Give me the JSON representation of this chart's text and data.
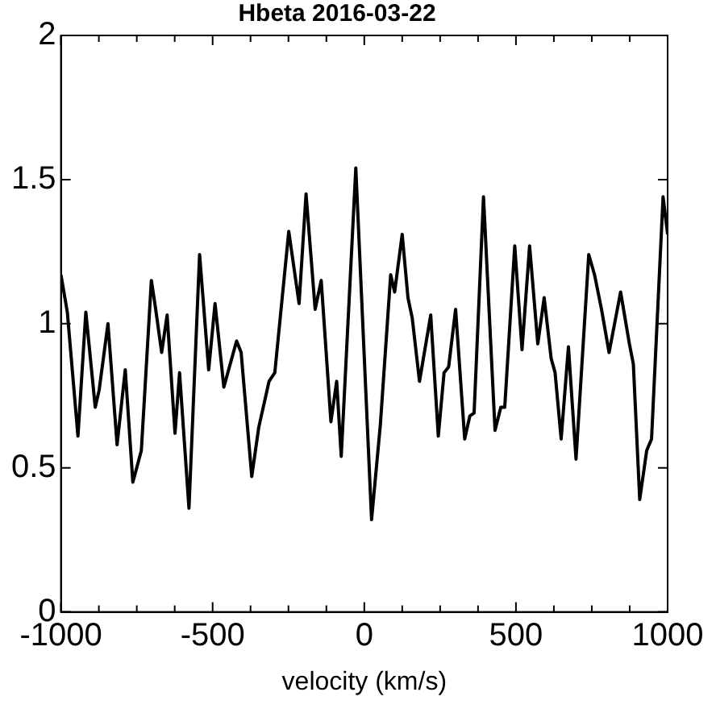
{
  "chart_data": {
    "type": "line",
    "title": "Hbeta 2016-03-22",
    "xlabel": "velocity (km/s)",
    "x": [
      -1000,
      -979,
      -944,
      -918,
      -887,
      -874,
      -845,
      -815,
      -788,
      -763,
      -735,
      -702,
      -689,
      -668,
      -650,
      -624,
      -609,
      -578,
      -543,
      -513,
      -492,
      -463,
      -421,
      -406,
      -371,
      -348,
      -314,
      -295,
      -249,
      -215,
      -192,
      -162,
      -142,
      -110,
      -91,
      -76,
      -28,
      24,
      53,
      87,
      100,
      125,
      144,
      158,
      182,
      219,
      244,
      263,
      278,
      301,
      331,
      348,
      362,
      393,
      431,
      450,
      463,
      496,
      520,
      545,
      572,
      593,
      616,
      629,
      649,
      673,
      698,
      740,
      759,
      782,
      807,
      845,
      874,
      887,
      908,
      931,
      947,
      985,
      1000
    ],
    "series": [
      {
        "color": "#000000",
        "values": [
          1.17,
          1.04,
          0.61,
          1.04,
          0.71,
          0.77,
          1.0,
          0.58,
          0.84,
          0.45,
          0.56,
          1.15,
          1.06,
          0.9,
          1.03,
          0.62,
          0.83,
          0.36,
          1.24,
          0.84,
          1.07,
          0.78,
          0.94,
          0.9,
          0.47,
          0.64,
          0.8,
          0.83,
          1.32,
          1.07,
          1.45,
          1.05,
          1.15,
          0.66,
          0.8,
          0.54,
          1.54,
          0.32,
          0.65,
          1.17,
          1.11,
          1.31,
          1.09,
          1.02,
          0.8,
          1.03,
          0.61,
          0.83,
          0.85,
          1.05,
          0.6,
          0.68,
          0.69,
          1.44,
          0.63,
          0.71,
          0.71,
          1.27,
          0.91,
          1.27,
          0.93,
          1.09,
          0.88,
          0.83,
          0.6,
          0.92,
          0.53,
          1.24,
          1.17,
          1.05,
          0.9,
          1.11,
          0.93,
          0.86,
          0.39,
          0.56,
          0.6,
          1.44,
          1.31
        ]
      }
    ],
    "xlim": [
      -1000,
      1000
    ],
    "xticks": [
      -1000,
      {
        "value": -875,
        "label": null
      },
      {
        "value": -750,
        "label": null
      },
      {
        "value": -625,
        "label": null
      },
      -500,
      {
        "value": -375,
        "label": null
      },
      {
        "value": -250,
        "label": null
      },
      {
        "value": -125,
        "label": null
      },
      0,
      {
        "value": 125,
        "label": null
      },
      {
        "value": 250,
        "label": null
      },
      {
        "value": 375,
        "label": null
      },
      500,
      {
        "value": 625,
        "label": null
      },
      {
        "value": 750,
        "label": null
      },
      {
        "value": 875,
        "label": null
      },
      1000
    ],
    "ylim": [
      0,
      2
    ],
    "yticks": [
      0,
      0.5,
      1,
      1.5,
      2
    ],
    "grid": false,
    "legend": false,
    "marker": "none",
    "line_style": "solid"
  }
}
